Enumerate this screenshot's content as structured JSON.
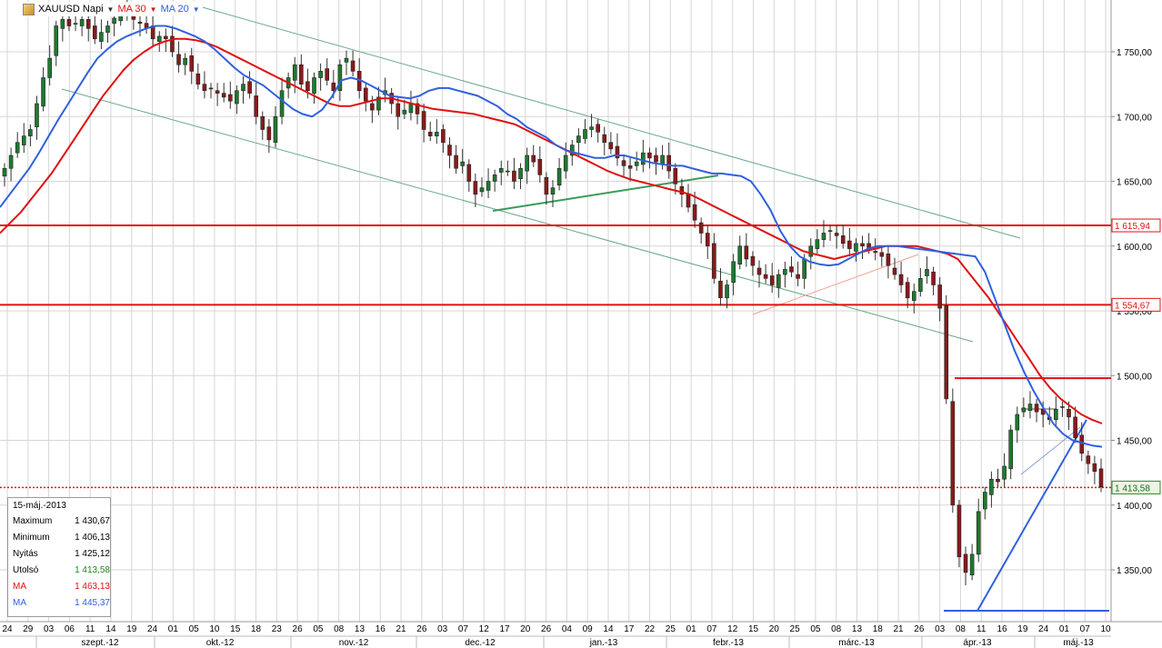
{
  "toolbar": {
    "symbol": "XAUUSD Napi",
    "ma30_label": "MA 30",
    "ma20_label": "MA 20"
  },
  "info_panel": {
    "date": "15-máj.-2013",
    "rows": [
      {
        "key": "Maximum",
        "value": "1 430,67"
      },
      {
        "key": "Minimum",
        "value": "1 406,13"
      },
      {
        "key": "Nyitás",
        "value": "1 425,12"
      },
      {
        "key": "Utolsó",
        "value": "1 413,58"
      },
      {
        "key": "MA",
        "value": "1 463,13"
      },
      {
        "key": "MA",
        "value": "1 445,37"
      }
    ]
  },
  "colors": {
    "up_candle": "#1d7a2e",
    "down_candle": "#8a1a1a",
    "ma30": "#e01010",
    "ma20": "#3060e0",
    "level_line": "#e01010",
    "channel": "#6aa88a",
    "grid": "#d6d6d6"
  },
  "chart_data": {
    "type": "candlestick",
    "instrument": "XAUUSD",
    "period": "Napi",
    "ylim": [
      1310,
      1790
    ],
    "y_ticks": [
      {
        "v": 1350,
        "label": "1 350,00"
      },
      {
        "v": 1400,
        "label": "1 400,00"
      },
      {
        "v": 1450,
        "label": "1 450,00"
      },
      {
        "v": 1500,
        "label": "1 500,00"
      },
      {
        "v": 1550,
        "label": "1 550,00"
      },
      {
        "v": 1600,
        "label": "1 600,00"
      },
      {
        "v": 1650,
        "label": "1 650,00"
      },
      {
        "v": 1700,
        "label": "1 700,00"
      },
      {
        "v": 1750,
        "label": "1 750,00"
      }
    ],
    "x_day_labels": [
      "24",
      "29",
      "03",
      "06",
      "11",
      "14",
      "19",
      "24",
      "01",
      "05",
      "10",
      "15",
      "18",
      "23",
      "26",
      "05",
      "08",
      "13",
      "16",
      "21",
      "26",
      "03",
      "07",
      "12",
      "17",
      "20",
      "26",
      "04",
      "09",
      "14",
      "17",
      "22",
      "25",
      "01",
      "07",
      "12",
      "15",
      "20",
      "25",
      "05",
      "08",
      "13",
      "18",
      "21",
      "26",
      "03",
      "08",
      "11",
      "16",
      "19",
      "24",
      "01",
      "07",
      "10"
    ],
    "x_month_labels": [
      "szept.-12",
      "okt.-12",
      "nov.-12",
      "dec.-12",
      "jan.-13",
      "febr.-13",
      "márc.-13",
      "ápr.-13",
      "máj.-13"
    ],
    "levels": [
      {
        "value": 1615.94,
        "label": "1 615,94"
      },
      {
        "value": 1554.67,
        "label": "1 554,67"
      },
      {
        "value": 1498,
        "label": ""
      }
    ],
    "last_price": {
      "value": 1413.58,
      "label": "1 413,58"
    },
    "closes": [
      1660,
      1670,
      1680,
      1685,
      1690,
      1710,
      1730,
      1745,
      1770,
      1775,
      1770,
      1772,
      1775,
      1768,
      1760,
      1765,
      1770,
      1776,
      1780,
      1782,
      1775,
      1772,
      1768,
      1760,
      1762,
      1760,
      1750,
      1740,
      1745,
      1735,
      1725,
      1720,
      1722,
      1718,
      1715,
      1712,
      1720,
      1725,
      1718,
      1700,
      1690,
      1682,
      1700,
      1720,
      1730,
      1740,
      1725,
      1720,
      1730,
      1735,
      1728,
      1720,
      1740,
      1745,
      1735,
      1720,
      1712,
      1705,
      1715,
      1720,
      1710,
      1700,
      1705,
      1710,
      1702,
      1690,
      1685,
      1688,
      1680,
      1670,
      1660,
      1665,
      1650,
      1640,
      1645,
      1650,
      1655,
      1660,
      1658,
      1650,
      1660,
      1670,
      1665,
      1655,
      1640,
      1645,
      1660,
      1670,
      1678,
      1685,
      1690,
      1692,
      1688,
      1680,
      1675,
      1668,
      1662,
      1660,
      1665,
      1672,
      1668,
      1665,
      1670,
      1658,
      1648,
      1640,
      1630,
      1620,
      1610,
      1600,
      1575,
      1560,
      1570,
      1588,
      1600,
      1590,
      1585,
      1578,
      1575,
      1570,
      1578,
      1582,
      1580,
      1575,
      1590,
      1600,
      1605,
      1610,
      1612,
      1608,
      1602,
      1598,
      1602,
      1600,
      1598,
      1595,
      1592,
      1585,
      1578,
      1570,
      1560,
      1565,
      1575,
      1582,
      1570,
      1552,
      1482,
      1400,
      1360,
      1348,
      1362,
      1395,
      1410,
      1420,
      1418,
      1430,
      1458,
      1470,
      1475,
      1478,
      1472,
      1470,
      1466,
      1474,
      1476,
      1468,
      1452,
      1440,
      1432,
      1426,
      1414
    ],
    "ma20": [
      1630,
      1640,
      1650,
      1660,
      1672,
      1685,
      1698,
      1710,
      1722,
      1734,
      1745,
      1752,
      1758,
      1762,
      1765,
      1768,
      1770,
      1770,
      1768,
      1765,
      1762,
      1758,
      1752,
      1745,
      1738,
      1732,
      1728,
      1724,
      1718,
      1712,
      1706,
      1702,
      1700,
      1705,
      1715,
      1728,
      1730,
      1728,
      1724,
      1720,
      1716,
      1715,
      1714,
      1716,
      1720,
      1722,
      1722,
      1720,
      1718,
      1716,
      1712,
      1708,
      1702,
      1698,
      1692,
      1688,
      1684,
      1678,
      1674,
      1672,
      1670,
      1668,
      1668,
      1670,
      1670,
      1668,
      1666,
      1664,
      1663,
      1662,
      1662,
      1660,
      1658,
      1656,
      1656,
      1655,
      1654,
      1650,
      1640,
      1628,
      1612,
      1600,
      1592,
      1588,
      1586,
      1585,
      1586,
      1590,
      1594,
      1598,
      1600,
      1600,
      1600,
      1599,
      1598,
      1597,
      1596,
      1595,
      1594,
      1593,
      1592,
      1580,
      1560,
      1540,
      1520,
      1503,
      1488,
      1475,
      1463,
      1455,
      1450,
      1448,
      1446,
      1445
    ],
    "ma30": [
      1610,
      1618,
      1626,
      1636,
      1646,
      1656,
      1668,
      1680,
      1692,
      1704,
      1716,
      1726,
      1736,
      1744,
      1750,
      1755,
      1758,
      1760,
      1760,
      1759,
      1757,
      1754,
      1750,
      1746,
      1742,
      1738,
      1734,
      1730,
      1726,
      1722,
      1718,
      1714,
      1710,
      1708,
      1708,
      1710,
      1712,
      1714,
      1714,
      1712,
      1710,
      1708,
      1706,
      1705,
      1704,
      1703,
      1702,
      1700,
      1698,
      1696,
      1694,
      1690,
      1686,
      1682,
      1678,
      1674,
      1670,
      1666,
      1662,
      1658,
      1655,
      1652,
      1650,
      1648,
      1646,
      1644,
      1642,
      1640,
      1636,
      1632,
      1628,
      1624,
      1620,
      1616,
      1612,
      1608,
      1604,
      1600,
      1596,
      1594,
      1592,
      1590,
      1592,
      1594,
      1596,
      1598,
      1600,
      1600,
      1600,
      1600,
      1598,
      1596,
      1594,
      1590,
      1580,
      1570,
      1560,
      1548,
      1536,
      1524,
      1512,
      1500,
      1490,
      1482,
      1476,
      1470,
      1466,
      1463
    ]
  }
}
